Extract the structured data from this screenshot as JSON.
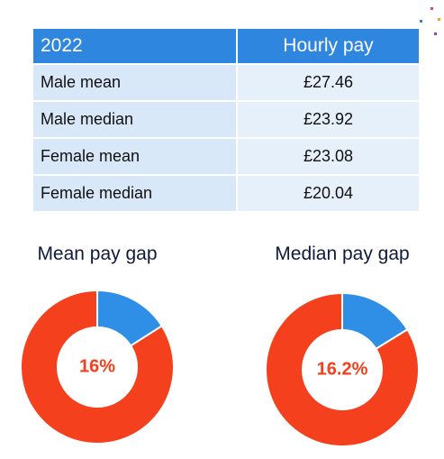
{
  "table": {
    "header": [
      "2022",
      "Hourly pay"
    ],
    "rows": [
      [
        "Male mean",
        "£27.46"
      ],
      [
        "Male median",
        "£23.92"
      ],
      [
        "Female mean",
        "£23.08"
      ],
      [
        "Female median",
        "£20.04"
      ]
    ]
  },
  "chart_data": [
    {
      "type": "donut",
      "title": "Mean pay gap",
      "values": [
        16,
        84
      ],
      "value_labels": [
        "16%",
        null
      ],
      "colors": [
        "#2f8ee5",
        "#f4401c"
      ]
    },
    {
      "type": "donut",
      "title": "Median pay gap",
      "values": [
        16.2,
        83.8
      ],
      "value_labels": [
        "16.2%",
        null
      ],
      "colors": [
        "#2f8ee5",
        "#f4401c"
      ]
    }
  ]
}
